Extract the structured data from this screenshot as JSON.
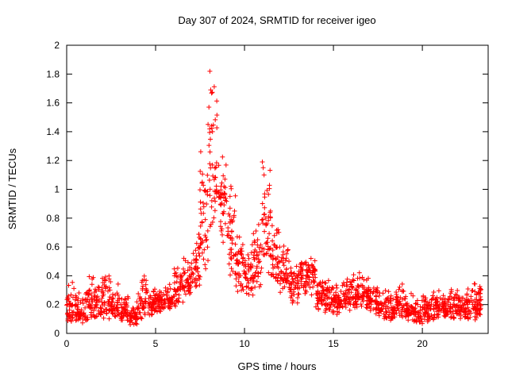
{
  "chart_data": {
    "type": "scatter",
    "title": "Day 307 of 2024, SRMTID for receiver igeo",
    "xlabel": "GPS time / hours",
    "ylabel": "SRMTID / TECUs",
    "series_name": "SRMTID",
    "marker": "plus",
    "marker_color": "#ff0000",
    "axis_color": "#000000",
    "background_color": "#ffffff",
    "grid": false,
    "legend": "none",
    "xlim": [
      0,
      23.7
    ],
    "ylim": [
      0,
      2
    ],
    "x_data_max": 23.3,
    "xticks": [
      0,
      5,
      10,
      15,
      20
    ],
    "xtick_labels": [
      "0",
      "5",
      "10",
      "15",
      "20"
    ],
    "yticks": [
      0,
      0.2,
      0.4,
      0.6,
      0.8,
      1,
      1.2,
      1.4,
      1.6,
      1.8,
      2
    ],
    "ytick_labels": [
      "0",
      "0.2",
      "0.4",
      "0.6",
      "0.8",
      "1",
      "1.2",
      "1.4",
      "1.6",
      "1.8",
      "2"
    ],
    "points_per_bin": 42,
    "bin_width": 0.5,
    "seed": 1307,
    "envelope_bins": [
      {
        "x": 0.0,
        "lo": 0.05,
        "hi": 0.38,
        "mode": 0.13
      },
      {
        "x": 0.5,
        "lo": 0.05,
        "hi": 0.3,
        "mode": 0.13
      },
      {
        "x": 1.0,
        "lo": 0.05,
        "hi": 0.42,
        "mode": 0.15
      },
      {
        "x": 1.5,
        "lo": 0.08,
        "hi": 0.35,
        "mode": 0.18
      },
      {
        "x": 2.0,
        "lo": 0.08,
        "hi": 0.5,
        "mode": 0.2
      },
      {
        "x": 2.5,
        "lo": 0.08,
        "hi": 0.35,
        "mode": 0.15
      },
      {
        "x": 3.0,
        "lo": 0.05,
        "hi": 0.28,
        "mode": 0.12
      },
      {
        "x": 3.5,
        "lo": 0.04,
        "hi": 0.25,
        "mode": 0.1
      },
      {
        "x": 4.0,
        "lo": 0.08,
        "hi": 0.43,
        "mode": 0.15
      },
      {
        "x": 4.5,
        "lo": 0.1,
        "hi": 0.33,
        "mode": 0.18
      },
      {
        "x": 5.0,
        "lo": 0.12,
        "hi": 0.32,
        "mode": 0.2
      },
      {
        "x": 5.5,
        "lo": 0.15,
        "hi": 0.38,
        "mode": 0.22
      },
      {
        "x": 6.0,
        "lo": 0.18,
        "hi": 0.48,
        "mode": 0.28
      },
      {
        "x": 6.5,
        "lo": 0.2,
        "hi": 0.55,
        "mode": 0.32
      },
      {
        "x": 7.0,
        "lo": 0.25,
        "hi": 0.75,
        "mode": 0.4
      },
      {
        "x": 7.5,
        "lo": 0.4,
        "hi": 1.5,
        "mode": 0.8
      },
      {
        "x": 8.0,
        "lo": 0.55,
        "hi": 1.82,
        "mode": 1.05
      },
      {
        "x": 8.5,
        "lo": 0.55,
        "hi": 1.3,
        "mode": 0.9
      },
      {
        "x": 9.0,
        "lo": 0.35,
        "hi": 1.1,
        "mode": 0.6
      },
      {
        "x": 9.5,
        "lo": 0.25,
        "hi": 0.7,
        "mode": 0.4
      },
      {
        "x": 10.0,
        "lo": 0.25,
        "hi": 0.65,
        "mode": 0.38
      },
      {
        "x": 10.5,
        "lo": 0.3,
        "hi": 0.8,
        "mode": 0.45
      },
      {
        "x": 11.0,
        "lo": 0.4,
        "hi": 1.2,
        "mode": 0.75
      },
      {
        "x": 11.5,
        "lo": 0.3,
        "hi": 0.8,
        "mode": 0.5
      },
      {
        "x": 12.0,
        "lo": 0.25,
        "hi": 0.65,
        "mode": 0.38
      },
      {
        "x": 12.5,
        "lo": 0.2,
        "hi": 0.5,
        "mode": 0.3
      },
      {
        "x": 13.0,
        "lo": 0.25,
        "hi": 0.55,
        "mode": 0.35
      },
      {
        "x": 13.5,
        "lo": 0.25,
        "hi": 0.58,
        "mode": 0.38
      },
      {
        "x": 14.0,
        "lo": 0.15,
        "hi": 0.4,
        "mode": 0.25
      },
      {
        "x": 14.5,
        "lo": 0.12,
        "hi": 0.38,
        "mode": 0.22
      },
      {
        "x": 15.0,
        "lo": 0.12,
        "hi": 0.36,
        "mode": 0.2
      },
      {
        "x": 15.5,
        "lo": 0.12,
        "hi": 0.4,
        "mode": 0.22
      },
      {
        "x": 16.0,
        "lo": 0.15,
        "hi": 0.46,
        "mode": 0.25
      },
      {
        "x": 16.5,
        "lo": 0.15,
        "hi": 0.42,
        "mode": 0.25
      },
      {
        "x": 17.0,
        "lo": 0.1,
        "hi": 0.35,
        "mode": 0.2
      },
      {
        "x": 17.5,
        "lo": 0.08,
        "hi": 0.3,
        "mode": 0.16
      },
      {
        "x": 18.0,
        "lo": 0.08,
        "hi": 0.32,
        "mode": 0.16
      },
      {
        "x": 18.5,
        "lo": 0.1,
        "hi": 0.35,
        "mode": 0.18
      },
      {
        "x": 19.0,
        "lo": 0.08,
        "hi": 0.28,
        "mode": 0.15
      },
      {
        "x": 19.5,
        "lo": 0.06,
        "hi": 0.25,
        "mode": 0.13
      },
      {
        "x": 20.0,
        "lo": 0.08,
        "hi": 0.3,
        "mode": 0.15
      },
      {
        "x": 20.5,
        "lo": 0.08,
        "hi": 0.32,
        "mode": 0.16
      },
      {
        "x": 21.0,
        "lo": 0.08,
        "hi": 0.3,
        "mode": 0.16
      },
      {
        "x": 21.5,
        "lo": 0.08,
        "hi": 0.32,
        "mode": 0.16
      },
      {
        "x": 22.0,
        "lo": 0.08,
        "hi": 0.3,
        "mode": 0.16
      },
      {
        "x": 22.5,
        "lo": 0.08,
        "hi": 0.35,
        "mode": 0.17
      },
      {
        "x": 23.0,
        "lo": 0.08,
        "hi": 0.38,
        "mode": 0.18
      }
    ],
    "peak_outliers": [
      [
        7.95,
        1.45
      ],
      [
        8.0,
        1.57
      ],
      [
        8.05,
        1.82
      ],
      [
        8.1,
        1.69
      ],
      [
        8.15,
        1.44
      ],
      [
        8.2,
        1.4
      ],
      [
        11.0,
        1.19
      ],
      [
        11.05,
        1.15
      ],
      [
        11.1,
        1.1
      ]
    ]
  }
}
